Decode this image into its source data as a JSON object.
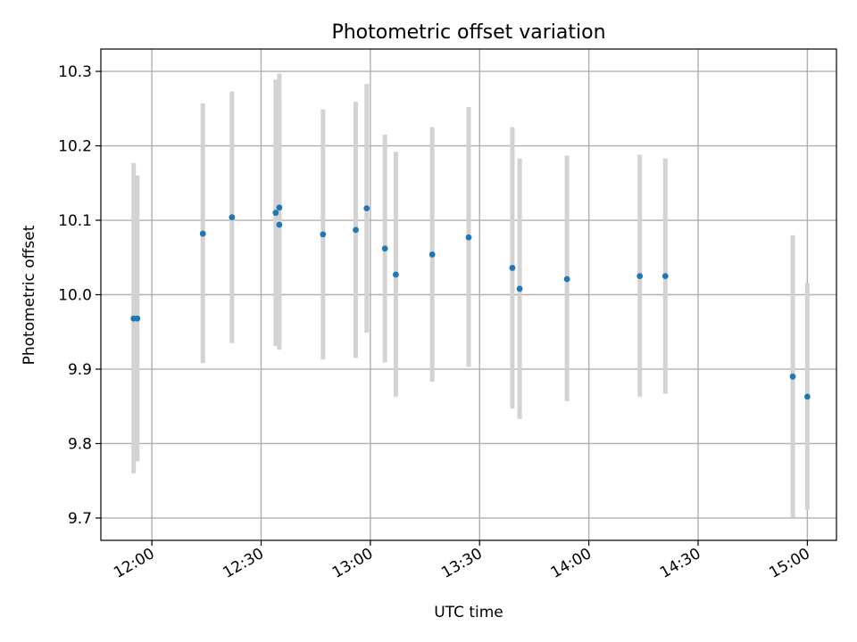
{
  "chart_data": {
    "type": "scatter",
    "title": "Photometric offset variation",
    "xlabel": "UTC time",
    "ylabel": "Photometric offset",
    "x_axis_type": "time",
    "xlim": [
      "11:46",
      "15:08"
    ],
    "ylim": [
      9.67,
      10.33
    ],
    "x_ticks": [
      "12:00",
      "12:30",
      "13:00",
      "13:30",
      "14:00",
      "14:30",
      "15:00"
    ],
    "y_ticks": [
      9.7,
      9.8,
      9.9,
      10.0,
      10.1,
      10.2,
      10.3
    ],
    "grid": true,
    "marker_color": "#1f77b4",
    "errorbar_color": "#d3d3d3",
    "points": [
      {
        "time": "11:55",
        "y": 9.968,
        "low": 9.76,
        "high": 10.177
      },
      {
        "time": "11:56",
        "y": 9.968,
        "low": 9.776,
        "high": 10.16
      },
      {
        "time": "12:14",
        "y": 10.082,
        "low": 9.908,
        "high": 10.257
      },
      {
        "time": "12:22",
        "y": 10.104,
        "low": 9.935,
        "high": 10.273
      },
      {
        "time": "12:34",
        "y": 10.11,
        "low": 9.931,
        "high": 10.289
      },
      {
        "time": "12:35",
        "y": 10.094,
        "low": 9.926,
        "high": 10.262
      },
      {
        "time": "12:35",
        "y": 10.117,
        "low": 9.937,
        "high": 10.297
      },
      {
        "time": "12:47",
        "y": 10.081,
        "low": 9.913,
        "high": 10.249
      },
      {
        "time": "12:56",
        "y": 10.087,
        "low": 9.915,
        "high": 10.259
      },
      {
        "time": "12:59",
        "y": 10.116,
        "low": 9.949,
        "high": 10.283
      },
      {
        "time": "13:04",
        "y": 10.062,
        "low": 9.909,
        "high": 10.215
      },
      {
        "time": "13:07",
        "y": 10.027,
        "low": 9.863,
        "high": 10.192
      },
      {
        "time": "13:17",
        "y": 10.054,
        "low": 9.883,
        "high": 10.225
      },
      {
        "time": "13:27",
        "y": 10.077,
        "low": 9.903,
        "high": 10.252
      },
      {
        "time": "13:39",
        "y": 10.036,
        "low": 9.847,
        "high": 10.225
      },
      {
        "time": "13:41",
        "y": 10.008,
        "low": 9.833,
        "high": 10.183
      },
      {
        "time": "13:54",
        "y": 10.021,
        "low": 9.857,
        "high": 10.187
      },
      {
        "time": "14:14",
        "y": 10.025,
        "low": 9.863,
        "high": 10.188
      },
      {
        "time": "14:21",
        "y": 10.025,
        "low": 9.867,
        "high": 10.183
      },
      {
        "time": "14:56",
        "y": 9.89,
        "low": 9.701,
        "high": 10.08
      },
      {
        "time": "15:00",
        "y": 9.863,
        "low": 9.711,
        "high": 10.016
      }
    ]
  }
}
